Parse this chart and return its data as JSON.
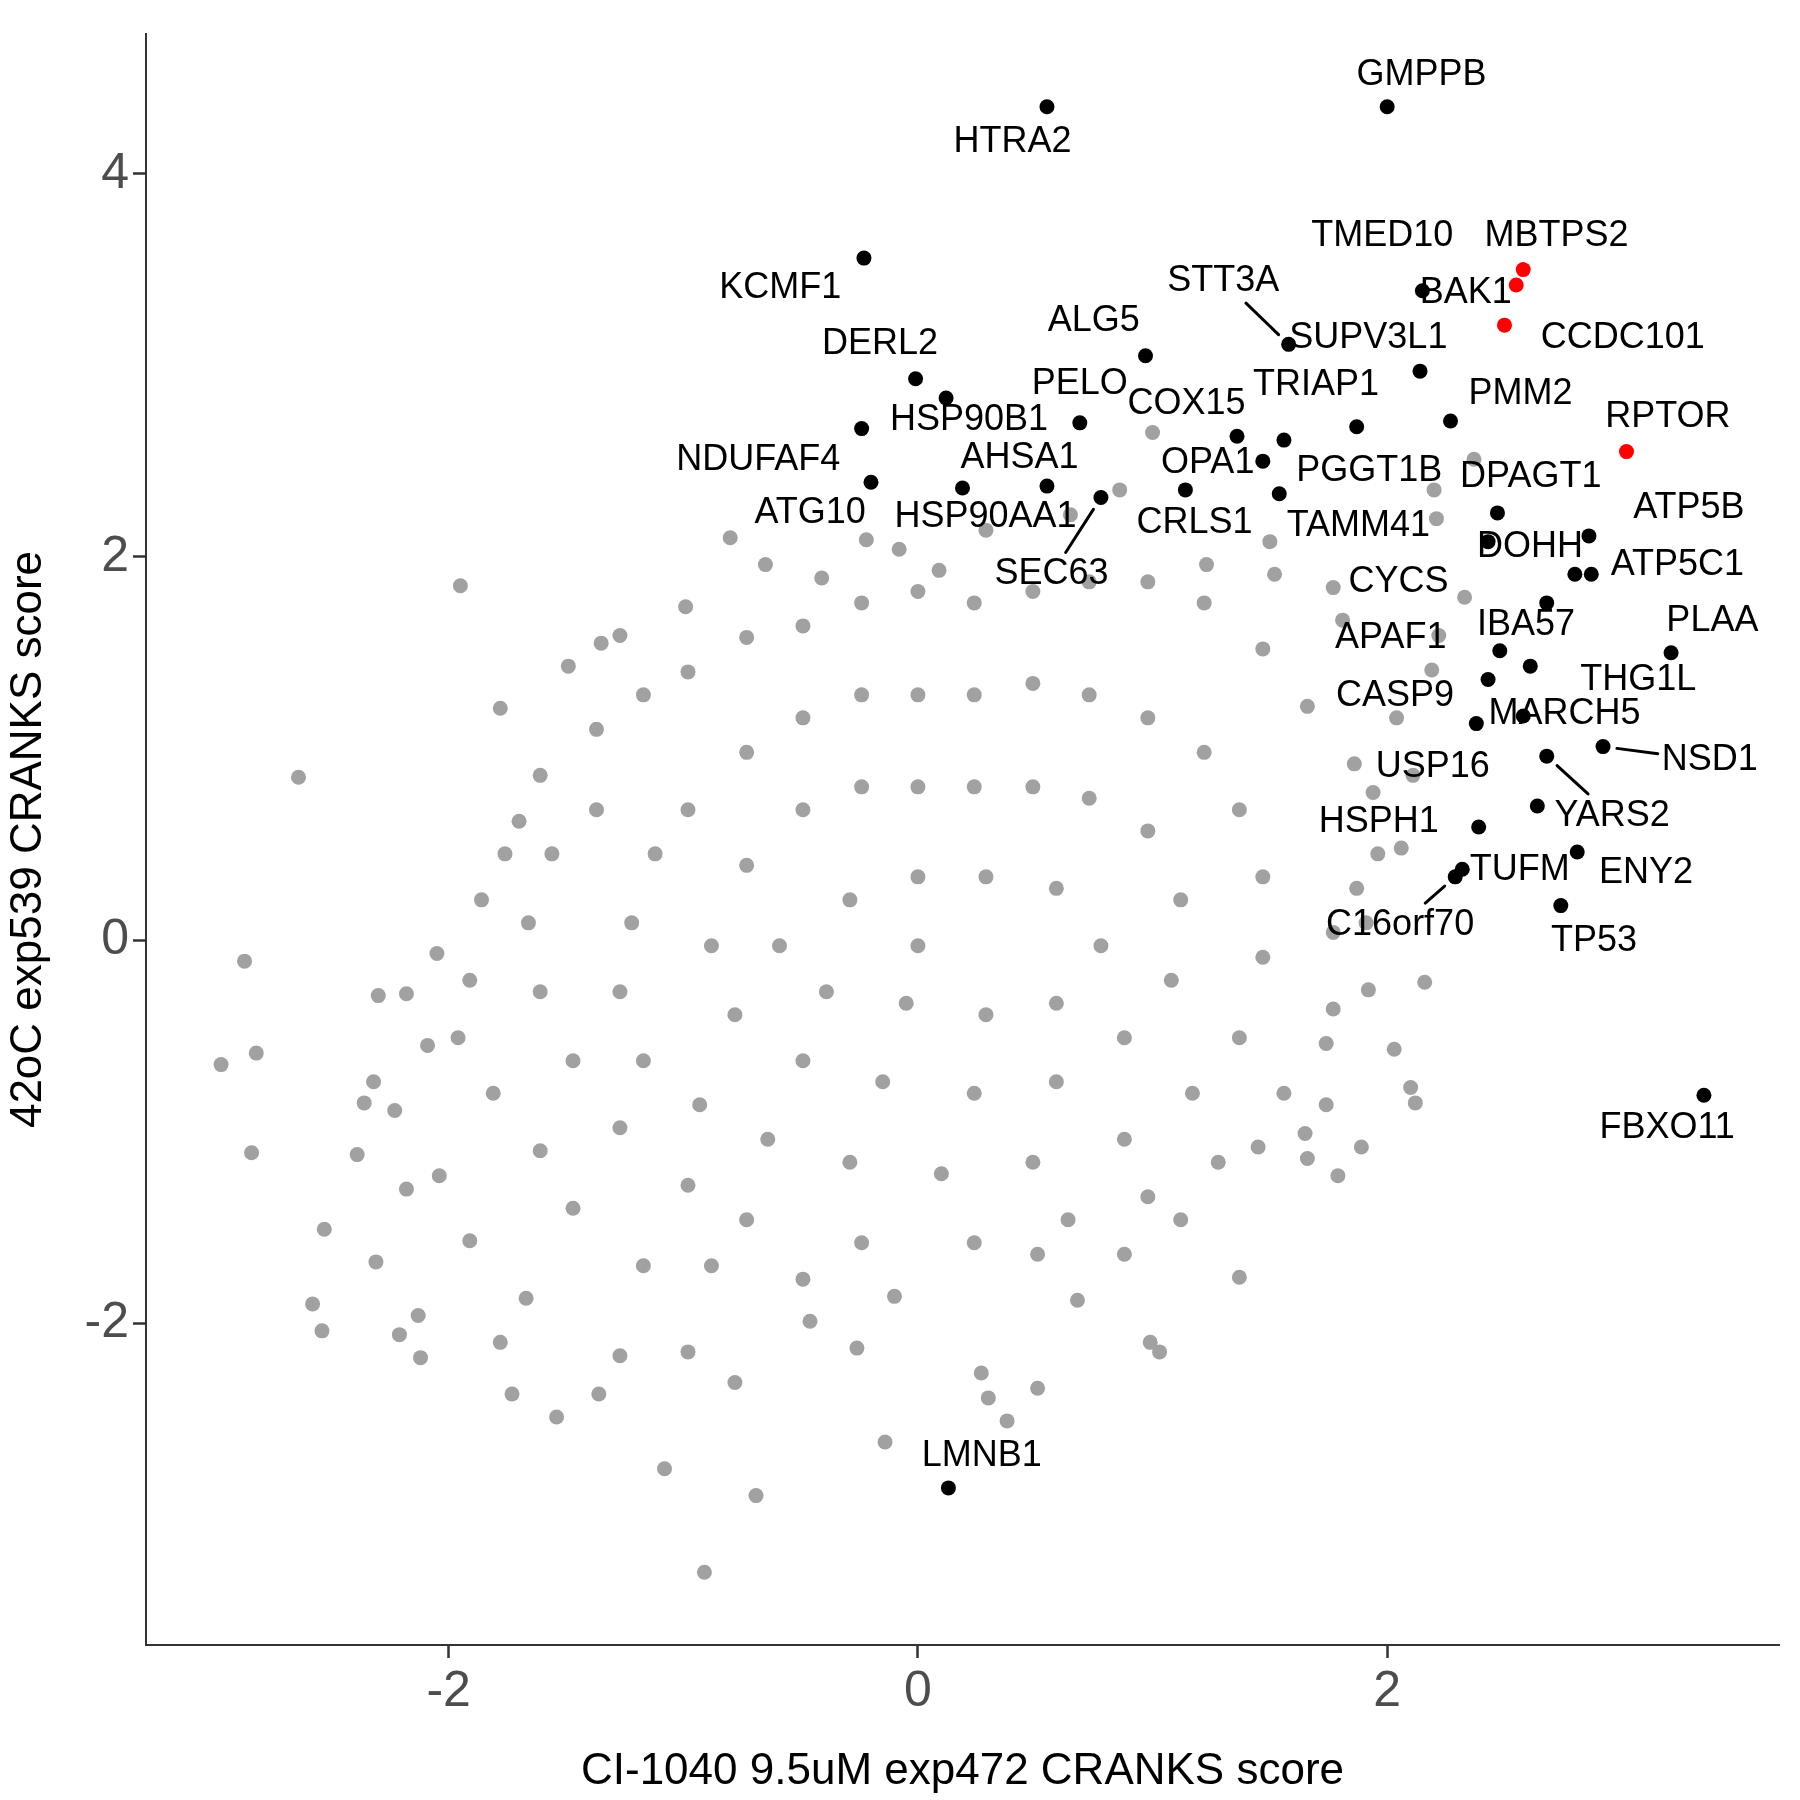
{
  "chart_data": {
    "type": "scatter",
    "xlabel": "CI-1040 9.5uM exp472 CRANKS score",
    "ylabel": "42oC exp539 CRANKS score",
    "xlim": [
      -3.29,
      3.67
    ],
    "ylim": [
      -3.68,
      4.73
    ],
    "xticks": [
      -2,
      0,
      2
    ],
    "yticks": [
      -2,
      0,
      2,
      4
    ],
    "grid": false,
    "legend": false,
    "marker": "circle",
    "series": [
      {
        "color": "#a1a1a1",
        "x": [
          -1.95,
          -2.64,
          -2.87,
          -2.97,
          -2.82,
          -2.84,
          -2.53,
          -2.58,
          -2.54,
          -2.21,
          -2.13,
          -2.12,
          -2.31,
          -1.78,
          -1.73,
          -1.54,
          -1.08,
          -0.69,
          -0.91,
          -0.14,
          0.38,
          0.3,
          0.51,
          1.03,
          1.37,
          1.89,
          2.12,
          2.1,
          2.16,
          2.03,
          1.79,
          1.66,
          0.99,
          0.68,
          0.27,
          -0.26,
          -0.46,
          -0.78,
          -0.98,
          -1.36,
          -1.27,
          -1.67,
          -1.91,
          -2.04,
          -2.18,
          -2.36,
          -2.23,
          -2.09,
          -2.18,
          -2.05,
          -2.3,
          -2.32,
          -2.39,
          -1.7,
          -1.78,
          -1.49,
          -1.35,
          -1.27,
          -0.99,
          -0.8,
          -0.65,
          -0.41,
          -0.22,
          -0.08,
          0.09,
          0.29,
          0.65,
          0.86,
          1.0,
          1.23,
          1.5,
          1.52,
          1.77,
          1.81,
          2.2,
          2.37,
          2.21,
          2.33,
          2.22,
          2.19,
          2.04,
          2.11,
          1.94,
          2.06,
          1.87,
          1.77,
          1.92,
          1.77,
          1.74,
          1.74,
          1.65,
          1.45,
          1.28,
          1.12,
          0.88,
          0.51,
          -0.1,
          -0.49,
          -0.88,
          -1.17,
          -1.47,
          -1.61,
          -1.81,
          -1.96,
          -1.91,
          -1.86,
          -1.76,
          -1.61,
          -1.37,
          -1.17,
          -0.98,
          -0.73,
          -0.49,
          -0.24,
          0.0,
          0.24,
          0.49,
          0.73,
          0.98,
          1.22,
          1.47,
          1.66,
          1.86,
          1.96,
          1.91,
          1.56,
          0.98,
          0.64,
          0.24,
          -0.24,
          -0.73,
          -0.98,
          -1.27,
          -1.47,
          -1.61,
          -1.66,
          -1.56,
          -1.37,
          -0.98,
          -0.73,
          -0.49,
          -0.24,
          0.0,
          0.24,
          0.49,
          0.73,
          0.98,
          1.22,
          1.37,
          1.47,
          1.47,
          1.37,
          1.17,
          0.88,
          0.49,
          0.1,
          -0.29,
          -0.64,
          -0.93,
          -1.17,
          -1.27,
          -1.22,
          -1.12,
          -0.73,
          -0.49,
          -0.24,
          0.0,
          0.24,
          0.49,
          0.73,
          0.98,
          1.12,
          1.08,
          0.88,
          0.59,
          0.24,
          -0.15,
          -0.49,
          -0.78,
          -0.88,
          -0.59,
          -0.29,
          0.0,
          0.29,
          0.59,
          0.78,
          0.59,
          0.29,
          -0.05,
          -0.39,
          0.0
        ],
        "values": [
          1.85,
          0.85,
          -0.11,
          -0.65,
          -0.59,
          -1.11,
          -1.51,
          -1.9,
          -2.04,
          -2.06,
          -1.96,
          -2.18,
          -1.68,
          -2.1,
          -2.37,
          -2.49,
          -2.76,
          -2.9,
          -3.3,
          -2.62,
          -2.51,
          -2.39,
          -2.34,
          -2.15,
          -1.76,
          -1.08,
          -0.85,
          -0.77,
          -0.22,
          -0.57,
          -1.23,
          -1.14,
          -2.1,
          -1.88,
          -2.26,
          -2.13,
          -1.99,
          -2.31,
          -2.15,
          -2.37,
          -2.17,
          -1.87,
          -1.57,
          -1.23,
          -1.3,
          -0.85,
          -0.89,
          -0.55,
          -0.28,
          -0.07,
          -0.29,
          -0.74,
          -1.12,
          0.62,
          1.21,
          1.43,
          1.55,
          1.59,
          1.74,
          2.1,
          1.96,
          1.89,
          2.09,
          2.04,
          1.93,
          2.14,
          2.22,
          2.35,
          2.65,
          1.96,
          2.08,
          1.91,
          1.84,
          1.67,
          2.35,
          2.51,
          2.2,
          1.79,
          1.59,
          1.41,
          1.16,
          0.86,
          0.77,
          0.48,
          0.27,
          0.04,
          -0.26,
          -0.36,
          -0.54,
          -0.86,
          -1.01,
          -1.08,
          -1.16,
          -1.46,
          -1.64,
          -1.64,
          -1.86,
          -1.77,
          -1.7,
          -1.7,
          -1.4,
          -1.1,
          -0.8,
          -0.51,
          -0.21,
          0.21,
          0.45,
          0.86,
          1.1,
          1.28,
          1.4,
          1.58,
          1.64,
          1.76,
          1.82,
          1.76,
          1.82,
          1.87,
          1.87,
          1.76,
          1.52,
          1.22,
          0.92,
          0.45,
          0.09,
          -0.8,
          -1.34,
          -1.46,
          -1.58,
          -1.58,
          -1.46,
          -1.28,
          -0.98,
          -0.63,
          -0.27,
          0.09,
          0.45,
          0.68,
          0.68,
          0.98,
          1.16,
          1.28,
          1.28,
          1.28,
          1.34,
          1.28,
          1.16,
          0.98,
          0.68,
          0.33,
          -0.09,
          -0.51,
          -0.8,
          -1.04,
          -1.16,
          -1.22,
          -1.16,
          -1.04,
          -0.86,
          -0.63,
          -0.27,
          0.09,
          0.45,
          0.39,
          0.68,
          0.8,
          0.8,
          0.8,
          0.8,
          0.74,
          0.57,
          0.21,
          -0.21,
          -0.51,
          -0.74,
          -0.8,
          -0.74,
          -0.63,
          -0.39,
          -0.03,
          -0.03,
          0.21,
          0.33,
          0.33,
          0.27,
          -0.03,
          -0.33,
          -0.39,
          -0.33,
          -0.27,
          -0.03
        ]
      },
      {
        "color": "#000000",
        "x": [
          2.0,
          0.55,
          -0.23,
          2.15,
          0.97,
          1.58,
          2.14,
          -0.01,
          0.12,
          0.69,
          1.36,
          1.56,
          2.27,
          -0.24,
          1.47,
          1.87,
          0.55,
          -0.2,
          0.19,
          1.14,
          1.54,
          0.78,
          2.47,
          2.86,
          2.8,
          2.43,
          2.87,
          2.68,
          3.21,
          2.48,
          2.61,
          2.43,
          2.58,
          2.38,
          2.92,
          2.68,
          2.64,
          2.39,
          2.32,
          2.81,
          2.29,
          2.74,
          3.35,
          0.13
        ],
        "values": [
          4.35,
          4.35,
          3.56,
          3.39,
          3.05,
          3.11,
          2.97,
          2.93,
          2.83,
          2.7,
          2.63,
          2.61,
          2.71,
          2.67,
          2.5,
          2.68,
          2.37,
          2.39,
          2.36,
          2.35,
          2.33,
          2.31,
          2.23,
          2.11,
          1.91,
          2.08,
          1.91,
          1.76,
          1.5,
          1.51,
          1.43,
          1.36,
          1.17,
          1.13,
          1.01,
          0.96,
          0.7,
          0.59,
          0.37,
          0.46,
          0.33,
          0.18,
          -0.81,
          -2.86
        ]
      },
      {
        "color": "#ff0000",
        "x": [
          2.58,
          2.55,
          2.5,
          3.02
        ],
        "values": [
          3.5,
          3.42,
          3.21,
          2.55
        ]
      }
    ],
    "annotations": [
      {
        "text": "GMPPB",
        "x": 2.0,
        "y": 4.35
      },
      {
        "text": "HTRA2",
        "x": 0.55,
        "y": 4.35
      },
      {
        "text": "KCMF1",
        "x": -0.23,
        "y": 3.56
      },
      {
        "text": "TMED10",
        "x": 2.15,
        "y": 3.39
      },
      {
        "text": "MBTPS2",
        "x": 2.58,
        "y": 3.5
      },
      {
        "text": "BAK1",
        "x": 2.55,
        "y": 3.42
      },
      {
        "text": "CCDC101",
        "x": 2.5,
        "y": 3.21
      },
      {
        "text": "RPTOR",
        "x": 3.02,
        "y": 2.55
      },
      {
        "text": "ALG5",
        "x": 0.97,
        "y": 3.05
      },
      {
        "text": "STT3A",
        "x": 1.58,
        "y": 3.11
      },
      {
        "text": "SUPV3L1",
        "x": 2.14,
        "y": 2.97
      },
      {
        "text": "DERL2",
        "x": -0.01,
        "y": 2.93
      },
      {
        "text": "HSP90B1",
        "x": 0.12,
        "y": 2.83
      },
      {
        "text": "PELO",
        "x": 0.69,
        "y": 2.7
      },
      {
        "text": "COX15",
        "x": 1.36,
        "y": 2.63
      },
      {
        "text": "TRIAP1",
        "x": 1.56,
        "y": 2.61
      },
      {
        "text": "PMM2",
        "x": 2.27,
        "y": 2.71
      },
      {
        "text": "NDUFAF4",
        "x": -0.24,
        "y": 2.67
      },
      {
        "text": "OPA1",
        "x": 1.47,
        "y": 2.5
      },
      {
        "text": "PGGT1B",
        "x": 1.87,
        "y": 2.68
      },
      {
        "text": "AHSA1",
        "x": 0.55,
        "y": 2.37
      },
      {
        "text": "ATG10",
        "x": -0.2,
        "y": 2.39
      },
      {
        "text": "HSP90AA1",
        "x": 0.19,
        "y": 2.36
      },
      {
        "text": "CRLS1",
        "x": 1.14,
        "y": 2.35
      },
      {
        "text": "TAMM41",
        "x": 1.54,
        "y": 2.33
      },
      {
        "text": "SEC63",
        "x": 0.78,
        "y": 2.31
      },
      {
        "text": "DPAGT1",
        "x": 2.47,
        "y": 2.23
      },
      {
        "text": "ATP5B",
        "x": 2.86,
        "y": 2.11
      },
      {
        "text": "DOHH",
        "x": 2.8,
        "y": 1.91
      },
      {
        "text": "CYCS",
        "x": 2.43,
        "y": 2.08
      },
      {
        "text": "ATP5C1",
        "x": 2.87,
        "y": 1.91
      },
      {
        "text": "IBA57",
        "x": 2.68,
        "y": 1.76
      },
      {
        "text": "PLAA",
        "x": 3.21,
        "y": 1.5
      },
      {
        "text": "APAF1",
        "x": 2.48,
        "y": 1.51
      },
      {
        "text": "THG1L",
        "x": 2.61,
        "y": 1.43
      },
      {
        "text": "CASP9",
        "x": 2.43,
        "y": 1.36
      },
      {
        "text": "MARCH5",
        "x": 2.58,
        "y": 1.17
      },
      {
        "text": "USP16",
        "x": 2.38,
        "y": 1.13
      },
      {
        "text": "NSD1",
        "x": 2.92,
        "y": 1.01
      },
      {
        "text": "YARS2",
        "x": 2.68,
        "y": 0.96
      },
      {
        "text": "HSPH1",
        "x": 2.39,
        "y": 0.59
      },
      {
        "text": "TUFM",
        "x": 2.32,
        "y": 0.37
      },
      {
        "text": "ENY2",
        "x": 2.81,
        "y": 0.46
      },
      {
        "text": "C16orf70",
        "x": 2.29,
        "y": 0.33
      },
      {
        "text": "TP53",
        "x": 2.74,
        "y": 0.18
      },
      {
        "text": "FBXO11",
        "x": 3.35,
        "y": -0.81
      },
      {
        "text": "LMNB1",
        "x": 0.13,
        "y": -2.86
      }
    ]
  }
}
